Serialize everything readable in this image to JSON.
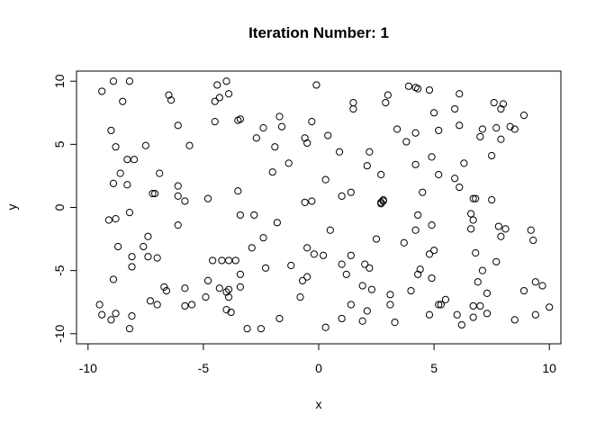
{
  "chart_data": {
    "type": "scatter",
    "title": "Iteration Number:  1",
    "x_label": "x",
    "y_label": "y",
    "x": [
      -9.4,
      -8.9,
      -8.2,
      -8.5,
      -9.0,
      -8.8,
      -8.3,
      -8.0,
      -8.9,
      -8.3,
      -8.8,
      -9.1,
      -8.2,
      -8.6,
      -7.2,
      -7.1,
      -6.9,
      -7.5,
      -7.6,
      -7.4,
      -7.0,
      -7.4,
      -8.1,
      -8.1,
      -8.7,
      -8.9,
      -7.3,
      -7.0,
      -6.7,
      -6.6,
      -8.1,
      -8.2,
      -8.8,
      -9.0,
      -9.4,
      -9.5,
      -6.5,
      -6.4,
      -6.1,
      -5.6,
      -6.1,
      -6.1,
      -5.8,
      -6.1,
      -4.8,
      -3.5,
      -3.4,
      -2.8,
      -3.4,
      -4.2,
      -3.9,
      -3.6,
      -2.9,
      -2.4,
      -2.3,
      -3.9,
      -3.4,
      -4.3,
      -4.0,
      -4.8,
      -4.6,
      -4.9,
      -3.9,
      -3.8,
      -4.0,
      -5.8,
      -5.5,
      -5.8,
      -3.1,
      -2.5,
      -1.7,
      -4.5,
      -4.4,
      -4.0,
      -4.3,
      -3.9,
      -4.5,
      -3.4,
      -3.5,
      -2.7,
      -2.4,
      -1.7,
      -1.6,
      -1.9,
      -2.0,
      -1.3,
      -0.6,
      -0.3,
      -0.1,
      -0.5,
      0.4,
      0.3,
      -0.6,
      -0.3,
      -1.8,
      -1.2,
      -0.7,
      -0.5,
      -0.2,
      0.2,
      -0.5,
      0.5,
      0.3,
      -0.8,
      0.9,
      1.5,
      1.5,
      2.1,
      2.2,
      2.5,
      2.8,
      2.7,
      2.7,
      2.8,
      2.9,
      3.0,
      3.4,
      3.8,
      2.7,
      1.0,
      1.4,
      1.4,
      1.0,
      1.2,
      2.0,
      2.2,
      1.9,
      2.3,
      1.4,
      1.0,
      1.9,
      2.1,
      3.1,
      3.1,
      3.3,
      3.9,
      4.2,
      4.3,
      4.2,
      4.2,
      4.5,
      4.8,
      5.0,
      5.2,
      4.9,
      5.2,
      5.9,
      6.1,
      6.1,
      6.3,
      5.9,
      6.1,
      4.3,
      4.2,
      4.9,
      3.7,
      4.4,
      4.3,
      4.0,
      4.8,
      5.0,
      4.9,
      4.8,
      5.2,
      5.5,
      5.3,
      6.0,
      6.2,
      6.7,
      6.7,
      6.8,
      6.6,
      6.7,
      6.6,
      6.8,
      7.1,
      6.9,
      7.3,
      7.0,
      6.7,
      7.3,
      8.5,
      9.4,
      10.0,
      8.9,
      9.4,
      9.7,
      7.7,
      7.8,
      8.1,
      7.9,
      9.2,
      9.3,
      7.5,
      7.1,
      7.0,
      7.7,
      7.9,
      8.3,
      8.5,
      8.9,
      7.6,
      8.0,
      7.5,
      7.9
    ],
    "values": [
      9.2,
      10,
      10,
      8.4,
      6.1,
      4.8,
      3.8,
      3.8,
      1.9,
      1.8,
      -0.9,
      -1.0,
      -0.4,
      2.7,
      1.1,
      1.1,
      2.7,
      4.9,
      -3.1,
      -2.3,
      -4.0,
      -3.9,
      -3.9,
      -4.7,
      -3.1,
      -5.7,
      -7.4,
      -7.7,
      -6.3,
      -6.6,
      -8.6,
      -9.6,
      -8.4,
      -8.9,
      -8.5,
      -7.7,
      8.9,
      8.5,
      6.5,
      4.9,
      1.7,
      0.9,
      0.5,
      -1.4,
      0.7,
      1.3,
      -0.6,
      -0.6,
      -5.3,
      -4.2,
      -4.2,
      -4.2,
      -3.2,
      -2.4,
      -4.8,
      -6.5,
      -6.3,
      -6.4,
      -6.7,
      -5.8,
      -4.2,
      -7.1,
      -7.1,
      -8.3,
      -8.1,
      -7.8,
      -7.7,
      -6.4,
      -9.6,
      -9.6,
      -8.8,
      8.4,
      9.7,
      10,
      8.7,
      9.0,
      6.8,
      7.0,
      6.9,
      5.5,
      6.3,
      7.2,
      6.4,
      4.8,
      2.8,
      3.5,
      5.5,
      6.8,
      9.7,
      5.1,
      5.7,
      2.2,
      0.4,
      0.5,
      -1.2,
      -4.6,
      -5.8,
      -3.2,
      -3.7,
      -3.8,
      -5.5,
      -1.8,
      -9.5,
      -7.1,
      4.4,
      7.8,
      8.3,
      3.3,
      4.4,
      -2.5,
      0.5,
      0.4,
      0.3,
      0.6,
      8.3,
      8.9,
      6.2,
      5.2,
      2.6,
      0.9,
      1.2,
      -3.8,
      -4.5,
      -5.3,
      -4.5,
      -4.8,
      -6.2,
      -6.5,
      -7.7,
      -8.8,
      -9.0,
      -8.2,
      -6.9,
      -7.7,
      -9.1,
      9.6,
      9.5,
      9.4,
      5.9,
      3.4,
      1.2,
      9.3,
      7.5,
      6.1,
      4.0,
      2.6,
      7.8,
      9.0,
      6.5,
      3.5,
      2.3,
      1.6,
      -0.6,
      -1.8,
      -1.4,
      -2.8,
      -4.9,
      -5.3,
      -6.6,
      -3.7,
      -3.4,
      -5.6,
      -8.5,
      -7.7,
      -7.3,
      -7.7,
      -8.5,
      -9.3,
      -8.7,
      0.7,
      0.7,
      -0.5,
      -1.0,
      -1.7,
      -3.6,
      -5.0,
      -5.9,
      -6.8,
      -7.8,
      -7.8,
      -8.4,
      -8.9,
      -8.5,
      -7.9,
      -6.6,
      -5.9,
      -6.2,
      -4.3,
      -1.5,
      -1.7,
      -2.3,
      -1.8,
      -2.6,
      0.6,
      6.2,
      5.6,
      6.3,
      5.4,
      6.4,
      6.2,
      7.3,
      8.3,
      8.2,
      4.1,
      7.8
    ],
    "xlim": [
      -10.5,
      10.5
    ],
    "ylim": [
      -10.8,
      10.8
    ],
    "xticks": [
      -10,
      -5,
      0,
      5,
      10
    ],
    "yticks": [
      -10,
      -5,
      0,
      5,
      10
    ]
  }
}
